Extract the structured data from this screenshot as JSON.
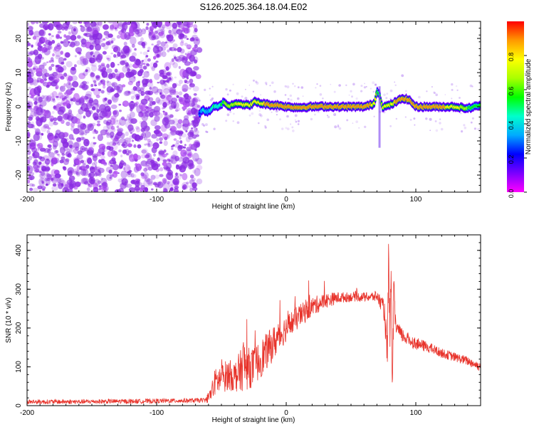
{
  "figure": {
    "title": "S126.2025.364.18.04.E02"
  },
  "colors": {
    "snr_line": "#e8332b",
    "axis": "#000000",
    "noise_dots": "#8a2be2",
    "ridge_core": "#e8202a",
    "ridge_halo": "#2a1cf0"
  },
  "chart_data": [
    {
      "type": "heatmap",
      "title": "S126.2025.364.18.04.E02",
      "xlabel": "Height of straight line (km)",
      "ylabel": "Frequency (Hz)",
      "xlim": [
        -200,
        150
      ],
      "ylim": [
        -25,
        25
      ],
      "x_ticks": [
        "-200",
        "-100",
        "0",
        "100"
      ],
      "y_ticks": [
        "-20",
        "-10",
        "0",
        "10",
        "20"
      ],
      "colorbar": {
        "label": "Normalized spectral amplitude",
        "range": [
          0,
          1
        ],
        "ticks": [
          "0.0",
          "0.2",
          "0.4",
          "0.6",
          "0.8"
        ],
        "colormap": [
          "#ff00ff",
          "#7a00ff",
          "#0000ff",
          "#00aaff",
          "#00ffcc",
          "#00ff00",
          "#aaff00",
          "#ffff00",
          "#ff9900",
          "#ff0000"
        ]
      },
      "noise_region_x": [
        -200,
        -67
      ],
      "ridge": {
        "x": [
          -67,
          -64,
          -60,
          -56,
          -52,
          -48,
          -44,
          -40,
          -36,
          -32,
          -28,
          -24,
          -20,
          -16,
          -12,
          -8,
          -4,
          0,
          10,
          20,
          30,
          40,
          50,
          60,
          65,
          68,
          70,
          72,
          74,
          76,
          80,
          85,
          90,
          95,
          100,
          110,
          120,
          130,
          140,
          150
        ],
        "freq": [
          -2,
          -1,
          -1.5,
          0,
          0,
          1.5,
          0,
          1,
          1,
          0.5,
          0.5,
          1.5,
          1,
          0.8,
          0.5,
          0.5,
          0.3,
          0,
          -0.2,
          0,
          0.1,
          0,
          0,
          0,
          0.5,
          1,
          4.5,
          4,
          0,
          0,
          0.5,
          1.5,
          2.5,
          2,
          0,
          0,
          0,
          0,
          -0.5,
          0.5
        ]
      },
      "ridge_intensity": [
        0.3,
        0.5,
        0.4,
        0.6,
        0.5,
        0.7,
        0.8,
        0.8,
        0.85,
        0.85,
        0.9,
        0.9,
        0.9,
        0.95,
        0.95,
        0.95,
        0.95,
        1,
        1,
        1,
        1,
        1,
        1,
        1,
        0.95,
        0.9,
        0.7,
        0.6,
        0.85,
        0.9,
        0.9,
        0.95,
        1,
        0.95,
        1,
        1,
        0.95,
        0.9,
        0.7,
        0.6
      ],
      "spur": {
        "x": 72,
        "freq_range": [
          -12,
          6
        ]
      }
    },
    {
      "type": "line",
      "xlabel": "Height of straight line (km)",
      "ylabel": "SNR (10 * v/v)",
      "xlim": [
        -200,
        150
      ],
      "ylim": [
        0,
        440
      ],
      "x_ticks": [
        "-200",
        "-100",
        "0",
        "100"
      ],
      "y_ticks": [
        "0",
        "100",
        "200",
        "300",
        "400"
      ],
      "series": [
        {
          "name": "SNR",
          "x": [
            -200,
            -180,
            -160,
            -140,
            -120,
            -100,
            -80,
            -62,
            -58,
            -55,
            -50,
            -45,
            -40,
            -35,
            -33,
            -30,
            -25,
            -20,
            -10,
            0,
            10,
            20,
            30,
            40,
            50,
            60,
            65,
            70,
            74,
            76,
            78,
            79,
            80,
            81,
            82,
            83,
            84,
            85,
            88,
            92,
            100,
            110,
            120,
            130,
            140,
            150
          ],
          "values": [
            10,
            10,
            10,
            11,
            11,
            12,
            13,
            14,
            30,
            60,
            70,
            80,
            75,
            90,
            110,
            95,
            100,
            120,
            160,
            200,
            230,
            255,
            270,
            278,
            280,
            280,
            280,
            282,
            260,
            240,
            120,
            350,
            200,
            300,
            40,
            280,
            230,
            200,
            185,
            175,
            160,
            150,
            135,
            125,
            115,
            100
          ],
          "noise_amplitude": [
            6,
            6,
            6,
            6,
            6,
            6,
            6,
            6,
            25,
            35,
            40,
            40,
            40,
            55,
            70,
            55,
            50,
            50,
            45,
            35,
            30,
            25,
            20,
            15,
            12,
            12,
            12,
            15,
            20,
            30,
            60,
            80,
            60,
            70,
            30,
            60,
            30,
            25,
            20,
            18,
            16,
            14,
            12,
            12,
            12,
            12
          ]
        }
      ]
    }
  ]
}
